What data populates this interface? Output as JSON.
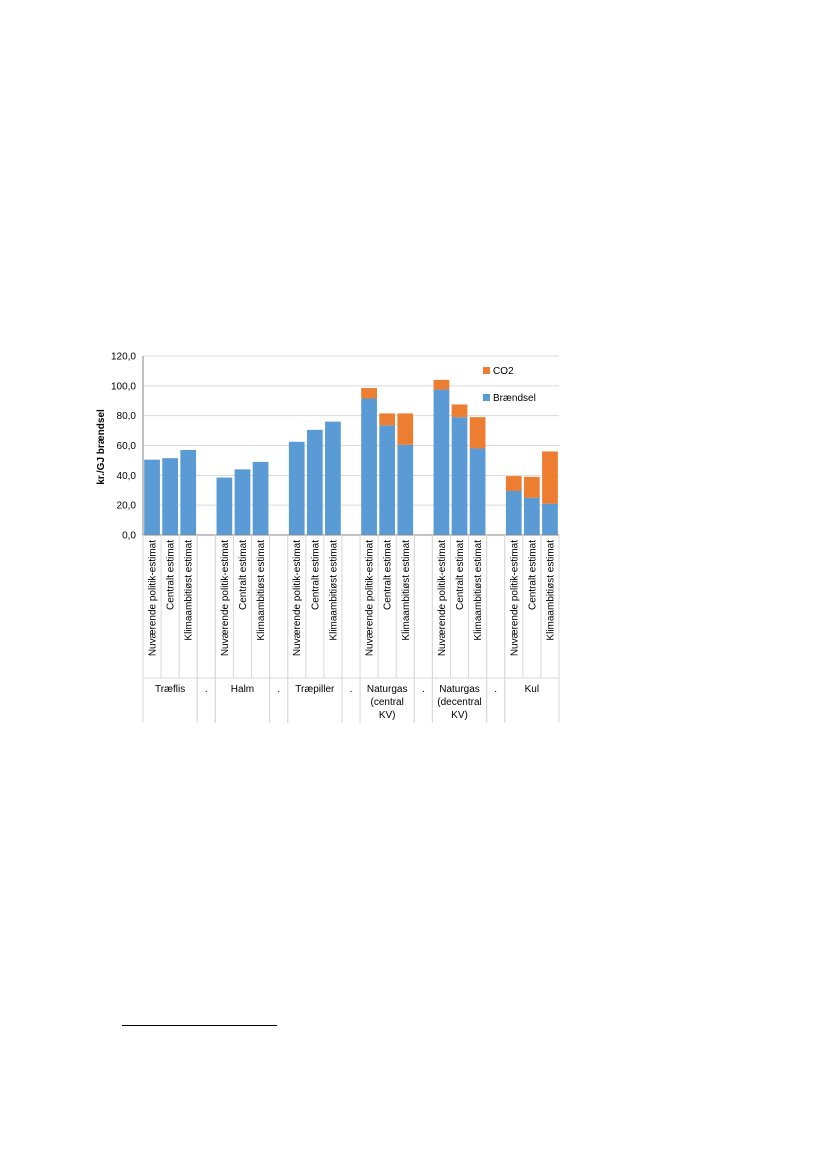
{
  "chart_data": {
    "type": "bar",
    "stacked": true,
    "ylabel": "kr./GJ brændsel",
    "ylim": [
      0,
      120
    ],
    "yticks": [
      "0,0",
      "20,0",
      "40,0",
      "60,0",
      "80,0",
      "100,0",
      "120,0"
    ],
    "ytick_values": [
      0,
      20,
      40,
      60,
      80,
      100,
      120
    ],
    "grid": true,
    "legend_position": "top-right",
    "series": [
      {
        "name": "Brændsel",
        "color": "#5b9bd5",
        "values": [
          50.5,
          51.5,
          57,
          null,
          38.5,
          44,
          49,
          null,
          62.5,
          70.5,
          76,
          null,
          91.5,
          73.5,
          60.5,
          null,
          97.5,
          79,
          58,
          null,
          29.5,
          25,
          21
        ]
      },
      {
        "name": "CO2",
        "color": "#ed7d31",
        "values": [
          0,
          0,
          0,
          null,
          0,
          0,
          0,
          null,
          0,
          0,
          0,
          null,
          7,
          8,
          21,
          null,
          6.5,
          8.5,
          21,
          null,
          10,
          14,
          35
        ]
      }
    ],
    "categories": [
      "Nuværende politik-estimat",
      "Centralt estimat",
      "Klimaambitiøst estimat",
      ".",
      "Nuværende politik-estimat",
      "Centralt estimat",
      "Klimaambitiøst estimat",
      ".",
      "Nuværende politik-estimat",
      "Centralt estimat",
      "Klimaambitiøst estimat",
      ".",
      "Nuværende politik-estimat",
      "Centralt estimat",
      "Klimaambitiøst estimat",
      ".",
      "Nuværende politik-estimat",
      "Centralt estimat",
      "Klimaambitiøst estimat",
      ".",
      "Nuværende politik-estimat",
      "Centralt estimat",
      "Klimaambitiøst estimat"
    ],
    "groups": [
      {
        "lines": [
          "Træflis"
        ],
        "start": 0,
        "count": 3
      },
      {
        "lines": [
          "."
        ],
        "start": 3,
        "count": 1
      },
      {
        "lines": [
          "Halm"
        ],
        "start": 4,
        "count": 3
      },
      {
        "lines": [
          "."
        ],
        "start": 7,
        "count": 1
      },
      {
        "lines": [
          "Træpiller"
        ],
        "start": 8,
        "count": 3
      },
      {
        "lines": [
          "."
        ],
        "start": 11,
        "count": 1
      },
      {
        "lines": [
          "Naturgas",
          "(central",
          "KV)"
        ],
        "start": 12,
        "count": 3
      },
      {
        "lines": [
          "."
        ],
        "start": 15,
        "count": 1
      },
      {
        "lines": [
          "Naturgas",
          "(decentral",
          "KV)"
        ],
        "start": 16,
        "count": 3
      },
      {
        "lines": [
          "."
        ],
        "start": 19,
        "count": 1
      },
      {
        "lines": [
          "Kul"
        ],
        "start": 20,
        "count": 3
      }
    ]
  }
}
